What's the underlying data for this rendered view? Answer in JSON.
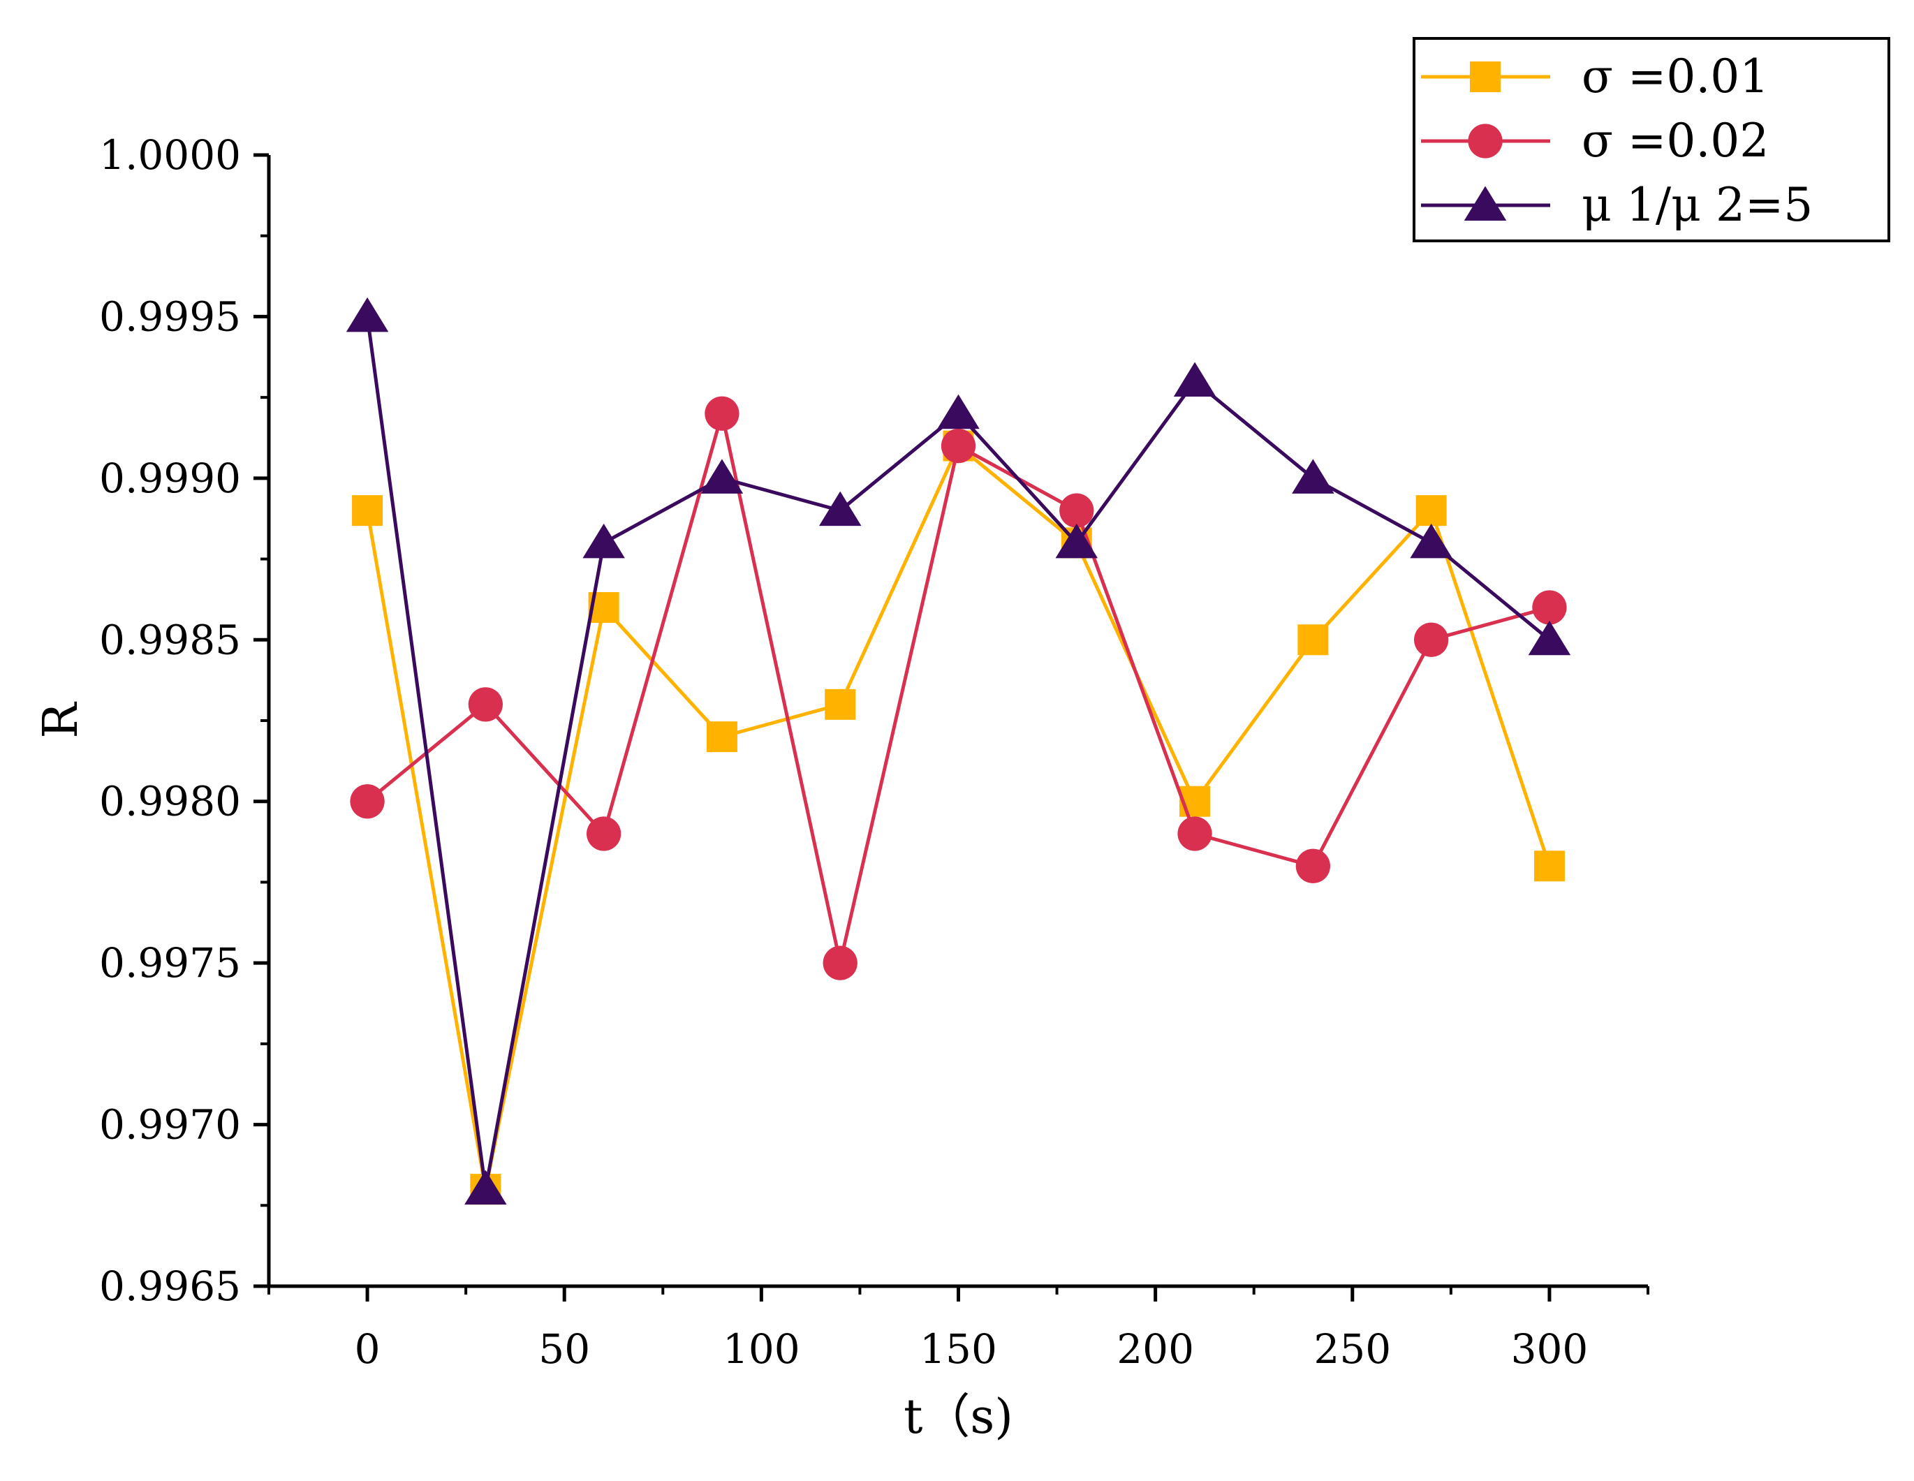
{
  "chart_data": {
    "type": "line",
    "title": "",
    "xlabel": "t（s)",
    "ylabel": "R",
    "x": [
      0,
      30,
      60,
      90,
      120,
      150,
      180,
      210,
      240,
      270,
      300
    ],
    "xlim": [
      -25,
      325
    ],
    "ylim": [
      0.9965,
      1.0
    ],
    "xticks": [
      0,
      50,
      100,
      150,
      200,
      250,
      300
    ],
    "xtick_labels": [
      "0",
      "50",
      "100",
      "150",
      "200",
      "250",
      "300"
    ],
    "yticks": [
      0.9965,
      0.997,
      0.9975,
      0.998,
      0.9985,
      0.999,
      0.9995,
      1.0
    ],
    "ytick_labels": [
      "0.9965",
      "0.9970",
      "0.9975",
      "0.9980",
      "0.9985",
      "0.9990",
      "0.9995",
      "1.0000"
    ],
    "grid": false,
    "legend_position": "top-right",
    "series": [
      {
        "name": "σ =0.01",
        "marker": "square",
        "color": "#FFB300",
        "values": [
          0.9989,
          0.9968,
          0.9986,
          0.9982,
          0.9983,
          0.9991,
          0.9988,
          0.998,
          0.9985,
          0.9989,
          0.9978
        ]
      },
      {
        "name": "σ =0.02",
        "marker": "circle",
        "color": "#D9304F",
        "values": [
          0.998,
          0.9983,
          0.9979,
          0.9992,
          0.9975,
          0.9991,
          0.9989,
          0.9979,
          0.9978,
          0.9985,
          0.9986
        ]
      },
      {
        "name": "μ 1/μ 2=5",
        "marker": "triangle",
        "color": "#3A0A5E",
        "values": [
          0.9995,
          0.9968,
          0.9988,
          0.999,
          0.9989,
          0.9992,
          0.9988,
          0.9993,
          0.999,
          0.9988,
          0.9985
        ]
      }
    ]
  }
}
